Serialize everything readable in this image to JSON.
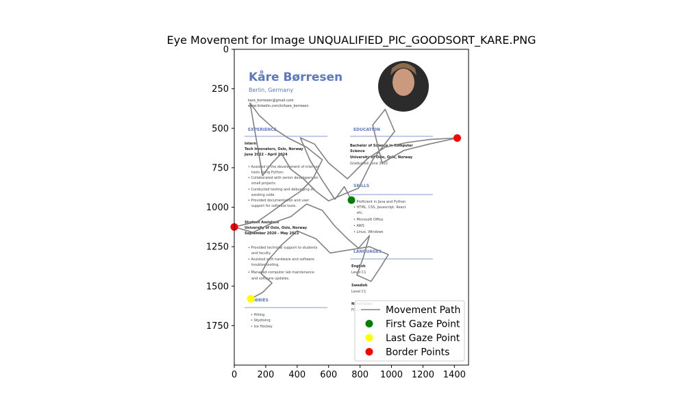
{
  "chart_data": {
    "type": "scatter",
    "title": "Eye Movement for Image UNQUALIFIED_PIC_GOODSORT_KARE.PNG",
    "xlabel": "",
    "ylabel": "",
    "xlim": [
      0,
      1490
    ],
    "ylim": [
      2000,
      0
    ],
    "x_ticks": [
      0,
      200,
      400,
      600,
      800,
      1000,
      1200,
      1400
    ],
    "y_ticks": [
      0,
      250,
      500,
      750,
      1000,
      1250,
      1500,
      1750
    ],
    "grid": false,
    "legend_position": "lower-right",
    "legend": [
      {
        "label": "Movement Path",
        "kind": "line",
        "color": "#808080"
      },
      {
        "label": "First Gaze Point",
        "kind": "marker",
        "color": "#008000"
      },
      {
        "label": "Last Gaze Point",
        "kind": "marker",
        "color": "#ffff00"
      },
      {
        "label": "Border Points",
        "kind": "marker",
        "color": "#ff0000"
      }
    ],
    "first_gaze_point": {
      "x": 745,
      "y": 955
    },
    "last_gaze_point": {
      "x": 105,
      "y": 1580
    },
    "border_points": [
      {
        "x": 1418,
        "y": 562
      },
      {
        "x": 0,
        "y": 1125
      }
    ],
    "path_samples": [
      {
        "x": 745,
        "y": 955
      },
      {
        "x": 700,
        "y": 870
      },
      {
        "x": 640,
        "y": 950
      },
      {
        "x": 560,
        "y": 830
      },
      {
        "x": 480,
        "y": 700
      },
      {
        "x": 420,
        "y": 560
      },
      {
        "x": 510,
        "y": 600
      },
      {
        "x": 600,
        "y": 720
      },
      {
        "x": 720,
        "y": 820
      },
      {
        "x": 850,
        "y": 690
      },
      {
        "x": 960,
        "y": 620
      },
      {
        "x": 1100,
        "y": 590
      },
      {
        "x": 1250,
        "y": 570
      },
      {
        "x": 1418,
        "y": 562
      },
      {
        "x": 1240,
        "y": 600
      },
      {
        "x": 1080,
        "y": 640
      },
      {
        "x": 940,
        "y": 720
      },
      {
        "x": 880,
        "y": 480
      },
      {
        "x": 960,
        "y": 380
      },
      {
        "x": 1020,
        "y": 520
      },
      {
        "x": 880,
        "y": 700
      },
      {
        "x": 790,
        "y": 880
      },
      {
        "x": 690,
        "y": 920
      },
      {
        "x": 600,
        "y": 960
      },
      {
        "x": 520,
        "y": 900
      },
      {
        "x": 440,
        "y": 820
      },
      {
        "x": 360,
        "y": 760
      },
      {
        "x": 300,
        "y": 660
      },
      {
        "x": 240,
        "y": 720
      },
      {
        "x": 180,
        "y": 800
      },
      {
        "x": 100,
        "y": 340
      },
      {
        "x": 160,
        "y": 420
      },
      {
        "x": 250,
        "y": 500
      },
      {
        "x": 340,
        "y": 560
      },
      {
        "x": 460,
        "y": 620
      },
      {
        "x": 560,
        "y": 700
      },
      {
        "x": 500,
        "y": 820
      },
      {
        "x": 420,
        "y": 900
      },
      {
        "x": 330,
        "y": 960
      },
      {
        "x": 250,
        "y": 1020
      },
      {
        "x": 150,
        "y": 1090
      },
      {
        "x": 0,
        "y": 1125
      },
      {
        "x": 120,
        "y": 1160
      },
      {
        "x": 240,
        "y": 1100
      },
      {
        "x": 360,
        "y": 1060
      },
      {
        "x": 460,
        "y": 980
      },
      {
        "x": 560,
        "y": 1020
      },
      {
        "x": 640,
        "y": 1120
      },
      {
        "x": 720,
        "y": 1200
      },
      {
        "x": 790,
        "y": 1260
      },
      {
        "x": 860,
        "y": 1180
      },
      {
        "x": 820,
        "y": 1320
      },
      {
        "x": 780,
        "y": 1430
      },
      {
        "x": 870,
        "y": 1470
      },
      {
        "x": 930,
        "y": 1380
      },
      {
        "x": 980,
        "y": 1300
      },
      {
        "x": 860,
        "y": 1250
      },
      {
        "x": 610,
        "y": 1290
      },
      {
        "x": 520,
        "y": 1200
      },
      {
        "x": 400,
        "y": 1150
      },
      {
        "x": 300,
        "y": 1240
      },
      {
        "x": 220,
        "y": 1330
      },
      {
        "x": 170,
        "y": 1420
      },
      {
        "x": 240,
        "y": 1480
      },
      {
        "x": 180,
        "y": 1540
      },
      {
        "x": 105,
        "y": 1580
      }
    ]
  }
}
